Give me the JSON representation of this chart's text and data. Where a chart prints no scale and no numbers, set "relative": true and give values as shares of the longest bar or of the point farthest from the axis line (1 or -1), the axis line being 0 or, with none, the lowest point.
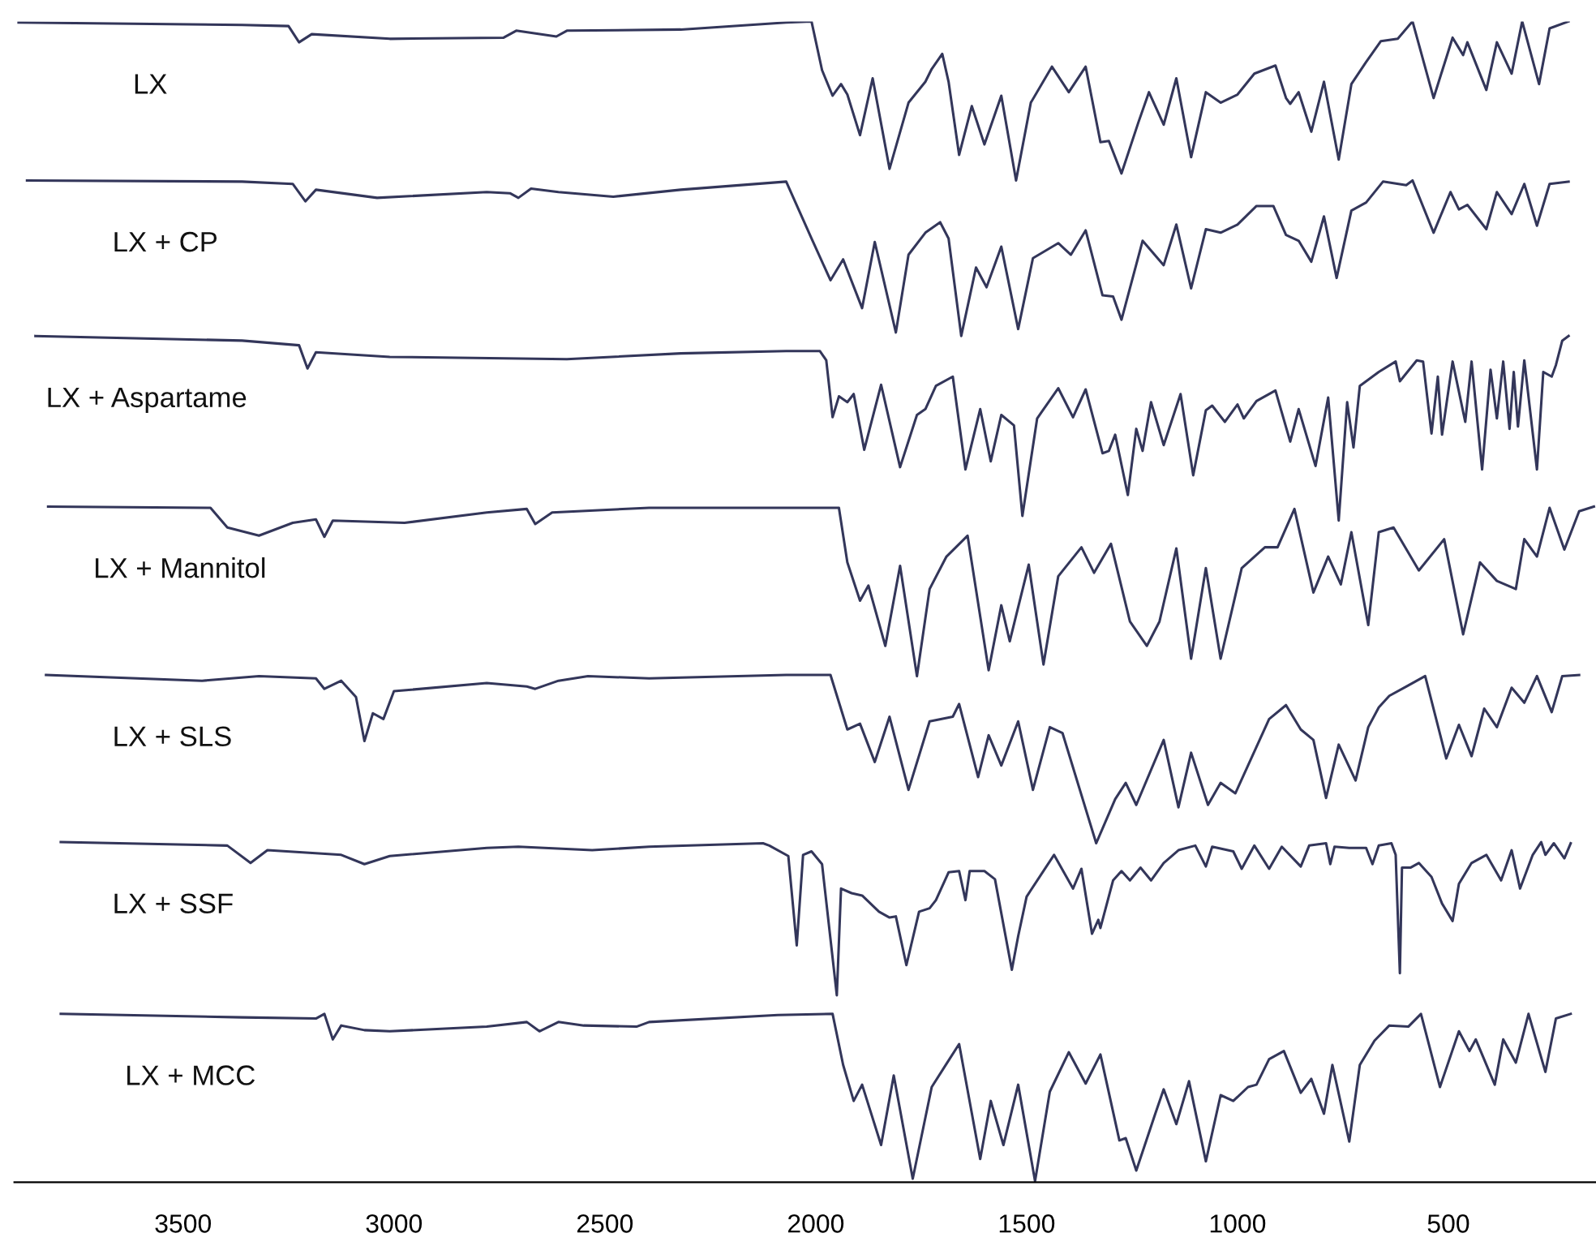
{
  "chart_data": {
    "type": "line",
    "relative": true,
    "xlim": [
      3900,
      150
    ],
    "xticks": [
      3500,
      3000,
      2500,
      2000,
      1500,
      1000,
      500
    ],
    "tick_labels": "x",
    "series": [
      {
        "name": "LX",
        "color": "#33365a",
        "x": [
          3890,
          3360,
          3250,
          3225,
          3195,
          3010,
          2740,
          2710,
          2615,
          2590,
          2320,
          2070,
          2010,
          1985,
          1960,
          1940,
          1925,
          1895,
          1865,
          1825,
          1780,
          1740,
          1725,
          1700,
          1685,
          1660,
          1630,
          1600,
          1560,
          1525,
          1490,
          1440,
          1400,
          1360,
          1325,
          1305,
          1275,
          1235,
          1210,
          1175,
          1145,
          1110,
          1075,
          1040,
          1000,
          960,
          910,
          885,
          875,
          855,
          825,
          795,
          760,
          730,
          695,
          660,
          620,
          585,
          535,
          490,
          465,
          455,
          410,
          385,
          350,
          325,
          285,
          260,
          215
        ],
        "values": [
          0.999,
          0.997,
          0.996,
          0.982,
          0.989,
          0.985,
          0.986,
          0.992,
          0.987,
          0.992,
          0.993,
          0.999,
          1.0,
          0.958,
          0.936,
          0.946,
          0.937,
          0.902,
          0.951,
          0.873,
          0.93,
          0.948,
          0.959,
          0.972,
          0.948,
          0.885,
          0.927,
          0.894,
          0.936,
          0.863,
          0.93,
          0.961,
          0.939,
          0.961,
          0.896,
          0.897,
          0.869,
          0.913,
          0.939,
          0.911,
          0.951,
          0.883,
          0.939,
          0.93,
          0.937,
          0.955,
          0.962,
          0.934,
          0.929,
          0.939,
          0.905,
          0.948,
          0.881,
          0.946,
          0.965,
          0.983,
          0.985,
          1.0,
          0.934,
          0.986,
          0.971,
          0.982,
          0.941,
          0.982,
          0.955,
          1.0,
          0.946,
          0.994,
          1.0
        ]
      },
      {
        "name": "LX + CP",
        "color": "#33365a",
        "x": [
          3870,
          3360,
          3240,
          3210,
          3185,
          3040,
          2780,
          2725,
          2705,
          2675,
          2610,
          2480,
          2320,
          2070,
          2010,
          1965,
          1935,
          1890,
          1860,
          1810,
          1780,
          1740,
          1705,
          1685,
          1655,
          1620,
          1595,
          1560,
          1520,
          1485,
          1425,
          1395,
          1360,
          1320,
          1295,
          1275,
          1225,
          1175,
          1145,
          1110,
          1075,
          1040,
          1000,
          955,
          915,
          885,
          855,
          825,
          795,
          765,
          730,
          695,
          655,
          600,
          585,
          535,
          495,
          475,
          455,
          410,
          385,
          350,
          320,
          290,
          260,
          215
        ],
        "values": [
          0.863,
          0.862,
          0.86,
          0.845,
          0.855,
          0.848,
          0.853,
          0.852,
          0.848,
          0.856,
          0.853,
          0.849,
          0.855,
          0.862,
          0.813,
          0.777,
          0.795,
          0.753,
          0.81,
          0.732,
          0.799,
          0.818,
          0.827,
          0.813,
          0.729,
          0.788,
          0.771,
          0.806,
          0.735,
          0.796,
          0.809,
          0.799,
          0.82,
          0.764,
          0.763,
          0.743,
          0.811,
          0.79,
          0.825,
          0.77,
          0.821,
          0.818,
          0.825,
          0.841,
          0.841,
          0.816,
          0.811,
          0.793,
          0.832,
          0.779,
          0.837,
          0.844,
          0.862,
          0.859,
          0.863,
          0.818,
          0.853,
          0.838,
          0.842,
          0.821,
          0.853,
          0.834,
          0.86,
          0.824,
          0.86,
          0.862
        ]
      },
      {
        "name": "LX + Aspartame",
        "color": "#33365a",
        "x": [
          3850,
          3360,
          3225,
          3205,
          3185,
          3010,
          2590,
          2320,
          2070,
          1990,
          1975,
          1960,
          1945,
          1925,
          1910,
          1885,
          1845,
          1800,
          1760,
          1740,
          1715,
          1675,
          1645,
          1610,
          1585,
          1560,
          1530,
          1510,
          1475,
          1425,
          1390,
          1360,
          1320,
          1305,
          1290,
          1260,
          1240,
          1225,
          1205,
          1175,
          1135,
          1105,
          1075,
          1060,
          1030,
          1000,
          985,
          955,
          910,
          875,
          855,
          815,
          785,
          760,
          740,
          725,
          710,
          665,
          625,
          615,
          575,
          560,
          540,
          525,
          515,
          490,
          460,
          445,
          420,
          400,
          385,
          370,
          355,
          345,
          335,
          320,
          290,
          275,
          255,
          245,
          230,
          215
        ],
        "values": [
          0.729,
          0.725,
          0.721,
          0.701,
          0.715,
          0.711,
          0.709,
          0.714,
          0.716,
          0.716,
          0.708,
          0.659,
          0.677,
          0.672,
          0.679,
          0.631,
          0.687,
          0.616,
          0.661,
          0.666,
          0.686,
          0.694,
          0.614,
          0.666,
          0.621,
          0.661,
          0.652,
          0.574,
          0.658,
          0.684,
          0.659,
          0.683,
          0.628,
          0.63,
          0.644,
          0.592,
          0.649,
          0.63,
          0.672,
          0.635,
          0.679,
          0.609,
          0.665,
          0.669,
          0.655,
          0.67,
          0.658,
          0.673,
          0.682,
          0.638,
          0.666,
          0.617,
          0.676,
          0.57,
          0.672,
          0.633,
          0.686,
          0.698,
          0.707,
          0.69,
          0.708,
          0.707,
          0.645,
          0.694,
          0.644,
          0.707,
          0.655,
          0.707,
          0.614,
          0.7,
          0.658,
          0.707,
          0.649,
          0.698,
          0.651,
          0.708,
          0.614,
          0.698,
          0.694,
          0.704,
          0.725,
          0.729
        ]
      },
      {
        "name": "LX + Mannitol",
        "color": "#33365a",
        "x": [
          3820,
          3435,
          3395,
          3320,
          3240,
          3185,
          3165,
          3145,
          2975,
          2780,
          2685,
          2665,
          2625,
          2395,
          2070,
          1945,
          1925,
          1895,
          1875,
          1835,
          1800,
          1760,
          1730,
          1690,
          1640,
          1590,
          1560,
          1540,
          1495,
          1460,
          1425,
          1370,
          1340,
          1300,
          1255,
          1215,
          1185,
          1145,
          1110,
          1075,
          1040,
          990,
          935,
          905,
          865,
          820,
          785,
          755,
          730,
          690,
          665,
          630,
          570,
          510,
          465,
          425,
          385,
          340,
          320,
          290,
          260,
          225,
          190,
          155
        ],
        "values": [
          0.582,
          0.581,
          0.564,
          0.557,
          0.568,
          0.571,
          0.556,
          0.57,
          0.568,
          0.577,
          0.58,
          0.567,
          0.577,
          0.581,
          0.581,
          0.581,
          0.534,
          0.501,
          0.514,
          0.462,
          0.531,
          0.436,
          0.511,
          0.539,
          0.557,
          0.441,
          0.497,
          0.466,
          0.532,
          0.446,
          0.522,
          0.547,
          0.525,
          0.55,
          0.483,
          0.462,
          0.483,
          0.546,
          0.451,
          0.529,
          0.451,
          0.529,
          0.547,
          0.547,
          0.58,
          0.508,
          0.539,
          0.515,
          0.56,
          0.48,
          0.56,
          0.564,
          0.527,
          0.554,
          0.472,
          0.534,
          0.518,
          0.511,
          0.554,
          0.539,
          0.581,
          0.545,
          0.578,
          0.582
        ]
      },
      {
        "name": "LX + SLS",
        "color": "#33365a",
        "x": [
          3825,
          3455,
          3320,
          3185,
          3165,
          3125,
          3090,
          3070,
          3050,
          3025,
          3000,
          2780,
          2685,
          2665,
          2610,
          2540,
          2395,
          2070,
          1965,
          1925,
          1895,
          1860,
          1825,
          1780,
          1730,
          1675,
          1660,
          1615,
          1590,
          1560,
          1520,
          1485,
          1445,
          1415,
          1335,
          1290,
          1265,
          1240,
          1175,
          1140,
          1110,
          1070,
          1040,
          1005,
          925,
          885,
          850,
          820,
          790,
          760,
          720,
          690,
          665,
          640,
          600,
          555,
          505,
          475,
          445,
          415,
          385,
          350,
          320,
          290,
          255,
          230,
          190
        ],
        "values": [
          0.437,
          0.432,
          0.436,
          0.434,
          0.425,
          0.432,
          0.418,
          0.38,
          0.404,
          0.399,
          0.423,
          0.43,
          0.427,
          0.425,
          0.432,
          0.436,
          0.434,
          0.437,
          0.437,
          0.39,
          0.395,
          0.362,
          0.401,
          0.338,
          0.397,
          0.401,
          0.412,
          0.349,
          0.385,
          0.359,
          0.397,
          0.338,
          0.392,
          0.387,
          0.292,
          0.33,
          0.344,
          0.325,
          0.381,
          0.323,
          0.37,
          0.325,
          0.344,
          0.335,
          0.399,
          0.411,
          0.39,
          0.381,
          0.331,
          0.377,
          0.346,
          0.392,
          0.409,
          0.419,
          0.427,
          0.436,
          0.365,
          0.394,
          0.367,
          0.408,
          0.392,
          0.426,
          0.413,
          0.436,
          0.405,
          0.436,
          0.437
        ]
      },
      {
        "name": "LX + SSF",
        "color": "#33365a",
        "x": [
          3790,
          3395,
          3340,
          3300,
          3125,
          3070,
          3010,
          2780,
          2705,
          2530,
          2395,
          2125,
          2110,
          2065,
          2045,
          2030,
          2010,
          1985,
          1950,
          1940,
          1915,
          1890,
          1850,
          1825,
          1810,
          1785,
          1755,
          1730,
          1715,
          1685,
          1660,
          1645,
          1635,
          1600,
          1575,
          1535,
          1520,
          1500,
          1435,
          1390,
          1370,
          1345,
          1330,
          1325,
          1295,
          1275,
          1255,
          1230,
          1205,
          1175,
          1140,
          1100,
          1075,
          1060,
          1010,
          990,
          960,
          925,
          895,
          850,
          830,
          790,
          780,
          770,
          735,
          695,
          680,
          665,
          635,
          625,
          615,
          610,
          590,
          570,
          540,
          515,
          490,
          475,
          445,
          410,
          375,
          350,
          330,
          300,
          280,
          270,
          250,
          225,
          210
        ],
        "values": [
          0.293,
          0.29,
          0.275,
          0.286,
          0.282,
          0.274,
          0.281,
          0.288,
          0.289,
          0.286,
          0.289,
          0.292,
          0.29,
          0.281,
          0.204,
          0.282,
          0.285,
          0.274,
          0.161,
          0.253,
          0.249,
          0.247,
          0.233,
          0.228,
          0.229,
          0.187,
          0.233,
          0.236,
          0.243,
          0.267,
          0.268,
          0.243,
          0.268,
          0.268,
          0.261,
          0.183,
          0.212,
          0.246,
          0.282,
          0.253,
          0.27,
          0.214,
          0.226,
          0.219,
          0.26,
          0.268,
          0.26,
          0.271,
          0.26,
          0.275,
          0.286,
          0.29,
          0.272,
          0.289,
          0.285,
          0.27,
          0.29,
          0.27,
          0.289,
          0.272,
          0.29,
          0.292,
          0.274,
          0.289,
          0.288,
          0.288,
          0.274,
          0.29,
          0.292,
          0.282,
          0.18,
          0.271,
          0.271,
          0.275,
          0.263,
          0.24,
          0.225,
          0.257,
          0.275,
          0.282,
          0.26,
          0.286,
          0.253,
          0.282,
          0.293,
          0.282,
          0.292,
          0.279,
          0.292
        ]
      },
      {
        "name": "LX + MCC",
        "color": "#33365a",
        "x": [
          3790,
          3360,
          3185,
          3165,
          3145,
          3125,
          3070,
          3010,
          2780,
          2685,
          2655,
          2610,
          2550,
          2425,
          2395,
          2090,
          1960,
          1935,
          1910,
          1890,
          1845,
          1815,
          1770,
          1725,
          1690,
          1660,
          1610,
          1585,
          1555,
          1520,
          1480,
          1445,
          1400,
          1360,
          1325,
          1280,
          1265,
          1240,
          1195,
          1175,
          1145,
          1115,
          1075,
          1040,
          1010,
          975,
          955,
          925,
          890,
          850,
          825,
          795,
          775,
          735,
          710,
          675,
          640,
          595,
          565,
          520,
          475,
          450,
          435,
          390,
          370,
          340,
          310,
          270,
          245,
          210
        ],
        "values": [
          0.145,
          0.142,
          0.141,
          0.145,
          0.123,
          0.135,
          0.131,
          0.13,
          0.134,
          0.138,
          0.13,
          0.138,
          0.135,
          0.134,
          0.138,
          0.144,
          0.145,
          0.101,
          0.07,
          0.084,
          0.032,
          0.092,
          0.003,
          0.082,
          0.102,
          0.119,
          0.02,
          0.07,
          0.032,
          0.084,
          0.001,
          0.078,
          0.112,
          0.085,
          0.11,
          0.036,
          0.038,
          0.01,
          0.059,
          0.08,
          0.05,
          0.087,
          0.018,
          0.075,
          0.07,
          0.082,
          0.084,
          0.106,
          0.113,
          0.077,
          0.089,
          0.059,
          0.101,
          0.035,
          0.101,
          0.122,
          0.135,
          0.134,
          0.145,
          0.082,
          0.13,
          0.113,
          0.123,
          0.084,
          0.123,
          0.103,
          0.145,
          0.095,
          0.141,
          0.145
        ]
      }
    ]
  }
}
